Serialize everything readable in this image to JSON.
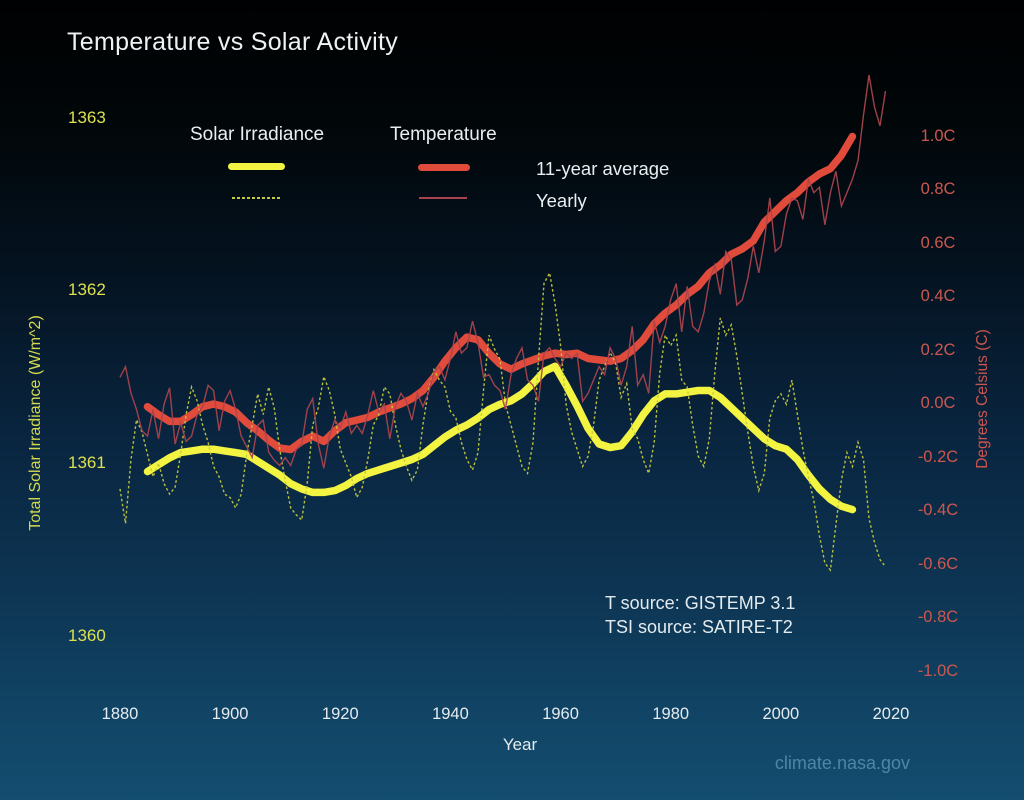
{
  "title": "Temperature vs Solar Activity",
  "legend": {
    "solar_header": "Solar Irradiance",
    "temp_header": "Temperature",
    "avg_label": "11-year average",
    "yearly_label": "Yearly"
  },
  "annotations": {
    "t_source": "T source: GISTEMP 3.1",
    "tsi_source": "TSI source: SATIRE-T2",
    "watermark": "climate.nasa.gov"
  },
  "colors": {
    "background_top": "#000102",
    "background_bottom": "#134d6f",
    "solar_thick": "#f2f441",
    "solar_thin": "#c3c93c",
    "temp_thick": "#e14b3c",
    "temp_thin": "#a9434d",
    "left_axis_text": "#dde04f",
    "right_axis_text": "#cc574f",
    "white_text": "#eef2f3",
    "watermark_text": "#4e86a5"
  },
  "chart_data": {
    "type": "line",
    "title": "Temperature vs Solar Activity",
    "xlabel": "Year",
    "grid": false,
    "legend_position": "top-left",
    "x_range": [
      1876,
      2024
    ],
    "x_tick_values": [
      1880,
      1900,
      1920,
      1940,
      1960,
      1980,
      2000,
      2020
    ],
    "x_tick_labels": [
      "1880",
      "1900",
      "1920",
      "1940",
      "1960",
      "1980",
      "2000",
      "2020"
    ],
    "yaxis_left": {
      "label": "Total Solar Irradiance (W/m^2)",
      "range": [
        1359.9,
        1363.1
      ],
      "tick_values": [
        1363,
        1362,
        1361,
        1360
      ],
      "tick_labels": [
        "1363",
        "1362",
        "1361",
        "1360"
      ]
    },
    "yaxis_right": {
      "label": "Degrees Celsius (C)",
      "range": [
        -1.15,
        1.3
      ],
      "tick_values": [
        1.0,
        0.8,
        0.6,
        0.4,
        0.2,
        0.0,
        -0.2,
        -0.4,
        -0.6,
        -0.8,
        -1.0
      ],
      "tick_labels": [
        "1.0C",
        "0.8C",
        "0.6C",
        "0.4C",
        "0.2C",
        "0.0C",
        "-0.2C",
        "-0.4C",
        "-0.6C",
        "-0.8C",
        "-1.0C"
      ]
    },
    "series": [
      {
        "id": "tsi-avg",
        "name": "Solar Irradiance 11-year average",
        "axis": "left",
        "style": "thick",
        "color": "#f2f441",
        "x_start": 1885,
        "x_step": 2,
        "values": [
          1360.95,
          1360.99,
          1361.03,
          1361.06,
          1361.07,
          1361.08,
          1361.08,
          1361.07,
          1361.06,
          1361.05,
          1361.01,
          1360.97,
          1360.93,
          1360.88,
          1360.85,
          1360.83,
          1360.83,
          1360.84,
          1360.87,
          1360.91,
          1360.94,
          1360.96,
          1360.98,
          1361.0,
          1361.02,
          1361.05,
          1361.1,
          1361.15,
          1361.19,
          1361.22,
          1361.26,
          1361.31,
          1361.34,
          1361.36,
          1361.4,
          1361.46,
          1361.53,
          1361.56,
          1361.45,
          1361.33,
          1361.2,
          1361.11,
          1361.09,
          1361.1,
          1361.18,
          1361.28,
          1361.36,
          1361.4,
          1361.4,
          1361.41,
          1361.42,
          1361.42,
          1361.38,
          1361.32,
          1361.26,
          1361.2,
          1361.14,
          1361.1,
          1361.08,
          1361.02,
          1360.93,
          1360.85,
          1360.79,
          1360.75,
          1360.73
        ]
      },
      {
        "id": "temp-avg",
        "name": "Temperature 11-year average",
        "axis": "right",
        "style": "thick",
        "color": "#e14b3c",
        "x_start": 1885,
        "x_step": 2,
        "values": [
          -0.01,
          -0.04,
          -0.065,
          -0.065,
          -0.04,
          -0.01,
          0.0,
          -0.01,
          -0.03,
          -0.07,
          -0.1,
          -0.135,
          -0.165,
          -0.17,
          -0.14,
          -0.12,
          -0.14,
          -0.1,
          -0.07,
          -0.06,
          -0.05,
          -0.03,
          -0.015,
          0.0,
          0.02,
          0.05,
          0.1,
          0.16,
          0.21,
          0.25,
          0.24,
          0.19,
          0.15,
          0.13,
          0.15,
          0.165,
          0.18,
          0.19,
          0.185,
          0.19,
          0.17,
          0.165,
          0.16,
          0.17,
          0.2,
          0.24,
          0.3,
          0.34,
          0.37,
          0.41,
          0.44,
          0.49,
          0.52,
          0.56,
          0.58,
          0.61,
          0.68,
          0.72,
          0.76,
          0.79,
          0.83,
          0.86,
          0.88,
          0.93,
          1.0
        ]
      },
      {
        "id": "tsi-yearly",
        "name": "Solar Irradiance Yearly",
        "axis": "left",
        "style": "thin_dotted",
        "color": "#c3c93c",
        "x_start": 1880,
        "x_step": 1,
        "values": [
          1360.85,
          1360.65,
          1361.02,
          1361.25,
          1361.18,
          1361.05,
          1360.92,
          1361.0,
          1360.88,
          1360.82,
          1360.86,
          1361.05,
          1361.28,
          1361.44,
          1361.36,
          1361.22,
          1361.12,
          1360.98,
          1360.92,
          1360.82,
          1360.8,
          1360.74,
          1360.82,
          1361.05,
          1361.22,
          1361.4,
          1361.28,
          1361.44,
          1361.32,
          1361.08,
          1360.9,
          1360.74,
          1360.7,
          1360.67,
          1360.88,
          1361.22,
          1361.32,
          1361.5,
          1361.42,
          1361.28,
          1361.08,
          1361.0,
          1360.92,
          1360.8,
          1360.86,
          1361.02,
          1361.22,
          1361.28,
          1361.44,
          1361.4,
          1361.22,
          1361.08,
          1360.98,
          1360.9,
          1360.96,
          1361.22,
          1361.42,
          1361.54,
          1361.48,
          1361.44,
          1361.3,
          1361.26,
          1361.12,
          1361.02,
          1360.96,
          1361.06,
          1361.42,
          1361.74,
          1361.66,
          1361.6,
          1361.34,
          1361.22,
          1361.1,
          1360.98,
          1360.94,
          1361.12,
          1361.6,
          1362.04,
          1362.1,
          1361.92,
          1361.68,
          1361.34,
          1361.18,
          1361.08,
          1360.98,
          1361.04,
          1361.22,
          1361.48,
          1361.56,
          1361.64,
          1361.58,
          1361.38,
          1361.46,
          1361.2,
          1361.14,
          1361.02,
          1360.94,
          1361.12,
          1361.52,
          1361.74,
          1361.68,
          1361.74,
          1361.48,
          1361.44,
          1361.22,
          1361.04,
          1360.98,
          1361.14,
          1361.52,
          1361.84,
          1361.74,
          1361.8,
          1361.62,
          1361.4,
          1361.18,
          1360.98,
          1360.84,
          1360.94,
          1361.26,
          1361.36,
          1361.4,
          1361.34,
          1361.48,
          1361.28,
          1361.08,
          1360.92,
          1360.78,
          1360.58,
          1360.42,
          1360.38,
          1360.64,
          1360.9,
          1361.06,
          1360.98,
          1361.12,
          1361.02,
          1360.68,
          1360.54,
          1360.44,
          1360.4
        ]
      },
      {
        "id": "temp-yearly",
        "name": "Temperature Yearly",
        "axis": "right",
        "style": "thin_solid",
        "color": "#a9434d",
        "x_start": 1880,
        "x_step": 1,
        "values": [
          0.1,
          0.14,
          0.04,
          -0.02,
          -0.1,
          -0.12,
          -0.02,
          -0.13,
          0.0,
          0.06,
          -0.15,
          -0.07,
          -0.14,
          -0.12,
          -0.04,
          -0.01,
          0.07,
          0.05,
          -0.1,
          0.01,
          0.05,
          -0.02,
          -0.12,
          -0.16,
          -0.2,
          -0.08,
          -0.06,
          -0.18,
          -0.21,
          -0.23,
          -0.2,
          -0.23,
          -0.17,
          -0.15,
          -0.02,
          0.02,
          -0.15,
          -0.24,
          -0.12,
          -0.06,
          -0.09,
          -0.03,
          -0.11,
          -0.08,
          -0.11,
          -0.04,
          0.05,
          -0.03,
          0.0,
          -0.13,
          -0.01,
          0.04,
          0.01,
          -0.06,
          0.04,
          -0.01,
          0.04,
          0.12,
          0.14,
          0.09,
          0.17,
          0.27,
          0.19,
          0.21,
          0.31,
          0.23,
          0.1,
          0.11,
          0.07,
          0.05,
          -0.02,
          0.11,
          0.17,
          0.21,
          0.09,
          0.07,
          0.01,
          0.19,
          0.21,
          0.17,
          0.14,
          0.19,
          0.17,
          0.19,
          0.01,
          0.04,
          0.09,
          0.14,
          0.11,
          0.21,
          0.17,
          0.07,
          0.14,
          0.29,
          0.07,
          0.11,
          0.04,
          0.31,
          0.23,
          0.29,
          0.39,
          0.45,
          0.27,
          0.44,
          0.29,
          0.27,
          0.34,
          0.46,
          0.52,
          0.41,
          0.57,
          0.54,
          0.37,
          0.39,
          0.47,
          0.59,
          0.49,
          0.61,
          0.77,
          0.57,
          0.59,
          0.71,
          0.77,
          0.76,
          0.69,
          0.84,
          0.79,
          0.81,
          0.67,
          0.79,
          0.87,
          0.74,
          0.79,
          0.84,
          0.91,
          1.08,
          1.23,
          1.11,
          1.04,
          1.17
        ]
      }
    ]
  }
}
